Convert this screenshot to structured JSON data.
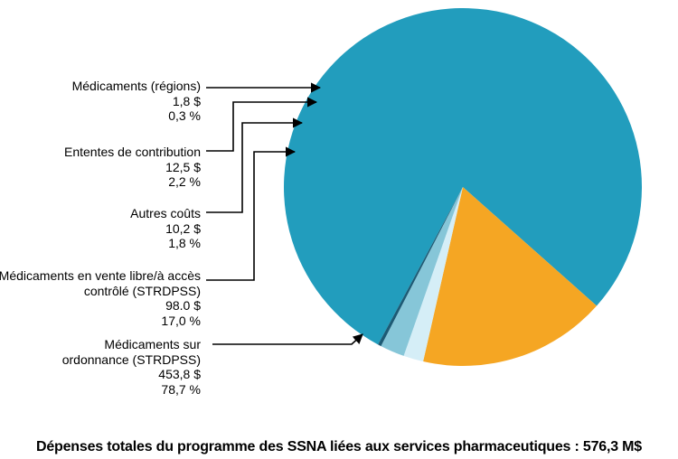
{
  "chart_data": {
    "type": "pie",
    "title": "Dépenses totales du programme des SSNA liées aux services pharmaceutiques : 576,3 M$",
    "slices": [
      {
        "label_lines": [
          "Médicaments sur",
          "ordonnance (STRDPSS)"
        ],
        "value": "453,8 $",
        "percent_label": "78,7 %",
        "percent": 78.7,
        "color": "#229dbd"
      },
      {
        "label_lines": [
          "Médicaments en vente libre/à accès",
          "contrôlé (STRDPSS)"
        ],
        "value": "98.0 $",
        "percent_label": "17,0 %",
        "percent": 17.0,
        "color": "#f5a623"
      },
      {
        "label_lines": [
          "Autres coûts"
        ],
        "value": "10,2 $",
        "percent_label": "1,8 %",
        "percent": 1.8,
        "color": "#d5eef7"
      },
      {
        "label_lines": [
          "Ententes de contribution"
        ],
        "value": "12,5 $",
        "percent_label": "2,2 %",
        "percent": 2.2,
        "color": "#86c6d8"
      },
      {
        "label_lines": [
          "Médicaments (régions)"
        ],
        "value": "1,8 $",
        "percent_label": "0,3 %",
        "percent": 0.3,
        "color": "#1c5a74"
      }
    ]
  }
}
